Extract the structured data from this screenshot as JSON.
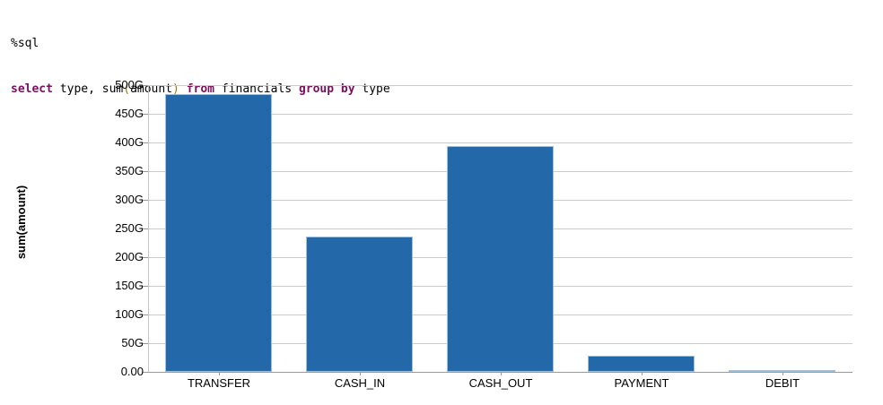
{
  "code": {
    "magic": "%sql",
    "query_tokens": [
      {
        "text": "select",
        "type": "kw"
      },
      {
        "text": " type, sum",
        "type": "pl"
      },
      {
        "text": "(",
        "type": "br"
      },
      {
        "text": "amount",
        "type": "pl"
      },
      {
        "text": ")",
        "type": "br"
      },
      {
        "text": " ",
        "type": "pl"
      },
      {
        "text": "from",
        "type": "kw"
      },
      {
        "text": " financials ",
        "type": "pl"
      },
      {
        "text": "group",
        "type": "kw"
      },
      {
        "text": " ",
        "type": "pl"
      },
      {
        "text": "by",
        "type": "kw"
      },
      {
        "text": " type",
        "type": "pl"
      }
    ]
  },
  "chart_data": {
    "type": "bar",
    "title": "",
    "xlabel": "",
    "ylabel": "sum(amount)",
    "categories": [
      "TRANSFER",
      "CASH_IN",
      "CASH_OUT",
      "PAYMENT",
      "DEBIT"
    ],
    "values": [
      485,
      236,
      394,
      28,
      0.23
    ],
    "unit": "G",
    "ylim": [
      0,
      500
    ],
    "y_tick_labels": [
      "500G",
      "450G",
      "400G",
      "350G",
      "300G",
      "250G",
      "200G",
      "150G",
      "100G",
      "50G",
      "0.00"
    ],
    "grid": true,
    "legend": false
  },
  "colors": {
    "bar": "#2368a8",
    "barborder": "#9fc1de",
    "kw": "#7a105e",
    "br": "#997711",
    "grid": "#cccccc",
    "axis": "#999999"
  }
}
